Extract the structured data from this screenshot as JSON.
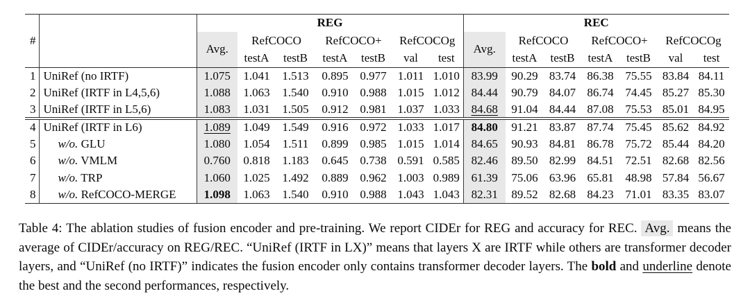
{
  "table": {
    "number_col_header": "#",
    "groups": [
      {
        "label": "REG"
      },
      {
        "label": "REC"
      }
    ],
    "avg_label": "Avg.",
    "datasets": [
      "RefCOCO",
      "RefCOCO+",
      "RefCOCOg"
    ],
    "splits": [
      "testA",
      "testB",
      "testA",
      "testB",
      "val",
      "test"
    ],
    "highlight_color": "#e8e8e8",
    "rows": [
      {
        "num": "1",
        "prefix": "",
        "model": "UniRef (no IRTF)",
        "group": 1,
        "cells": [
          "1.075",
          "1.041",
          "1.513",
          "0.895",
          "0.977",
          "1.011",
          "1.010",
          "83.99",
          "90.29",
          "83.74",
          "86.38",
          "75.55",
          "83.84",
          "84.11"
        ],
        "emphasis": {}
      },
      {
        "num": "2",
        "prefix": "",
        "model": "UniRef (IRTF in L4,5,6)",
        "group": 1,
        "cells": [
          "1.088",
          "1.063",
          "1.540",
          "0.910",
          "0.988",
          "1.015",
          "1.012",
          "84.44",
          "90.79",
          "84.07",
          "86.74",
          "74.45",
          "85.27",
          "85.30"
        ],
        "emphasis": {}
      },
      {
        "num": "3",
        "prefix": "",
        "model": "UniRef (IRTF in L5,6)",
        "group": 1,
        "cells": [
          "1.083",
          "1.031",
          "1.505",
          "0.912",
          "0.981",
          "1.037",
          "1.033",
          "84.68",
          "91.04",
          "84.44",
          "87.08",
          "75.53",
          "85.01",
          "84.95"
        ],
        "emphasis": {
          "7": "underline"
        }
      },
      {
        "num": "4",
        "prefix": "",
        "model": "UniRef (IRTF in L6)",
        "group": 2,
        "cells": [
          "1.089",
          "1.049",
          "1.549",
          "0.916",
          "0.972",
          "1.033",
          "1.017",
          "84.80",
          "91.21",
          "83.87",
          "87.74",
          "75.45",
          "85.62",
          "84.92"
        ],
        "emphasis": {
          "0": "underline",
          "7": "bold"
        }
      },
      {
        "num": "5",
        "prefix": "w/o.",
        "model": "GLU",
        "group": 2,
        "cells": [
          "1.080",
          "1.054",
          "1.511",
          "0.899",
          "0.985",
          "1.015",
          "1.014",
          "84.65",
          "90.93",
          "84.81",
          "86.78",
          "75.72",
          "85.44",
          "84.20"
        ],
        "emphasis": {}
      },
      {
        "num": "6",
        "prefix": "w/o.",
        "model": "VMLM",
        "group": 2,
        "cells": [
          "0.760",
          "0.818",
          "1.183",
          "0.645",
          "0.738",
          "0.591",
          "0.585",
          "82.46",
          "89.50",
          "82.99",
          "84.51",
          "72.51",
          "82.68",
          "82.56"
        ],
        "emphasis": {}
      },
      {
        "num": "7",
        "prefix": "w/o.",
        "model": "TRP",
        "group": 2,
        "cells": [
          "1.060",
          "1.025",
          "1.492",
          "0.889",
          "0.962",
          "1.003",
          "0.989",
          "61.39",
          "75.06",
          "63.96",
          "65.81",
          "48.98",
          "57.84",
          "56.67"
        ],
        "emphasis": {}
      },
      {
        "num": "8",
        "prefix": "w/o.",
        "model": "RefCOCO-MERGE",
        "group": 2,
        "cells": [
          "1.098",
          "1.063",
          "1.540",
          "0.910",
          "0.988",
          "1.043",
          "1.043",
          "82.31",
          "89.52",
          "82.68",
          "84.23",
          "71.01",
          "83.35",
          "83.07"
        ],
        "emphasis": {
          "0": "bold"
        }
      }
    ]
  },
  "caption": {
    "segments": [
      {
        "text": "Table 4: The ablation studies of fusion encoder and pre-training. We report CIDEr for REG and accuracy for REC. ",
        "style": "normal"
      },
      {
        "text": "Avg.",
        "style": "highlight"
      },
      {
        "text": " means the average of CIDEr/accuracy on REG/REC. “UniRef (IRTF in LX)” means that layers X are IRTF while others are transformer decoder layers, and “UniRef (no IRTF)” indicates the fusion encoder only contains transformer decoder layers. The ",
        "style": "normal"
      },
      {
        "text": "bold",
        "style": "bold"
      },
      {
        "text": " and ",
        "style": "normal"
      },
      {
        "text": "underline",
        "style": "underline"
      },
      {
        "text": " denote the best and the second performances, respectively.",
        "style": "normal"
      }
    ]
  }
}
